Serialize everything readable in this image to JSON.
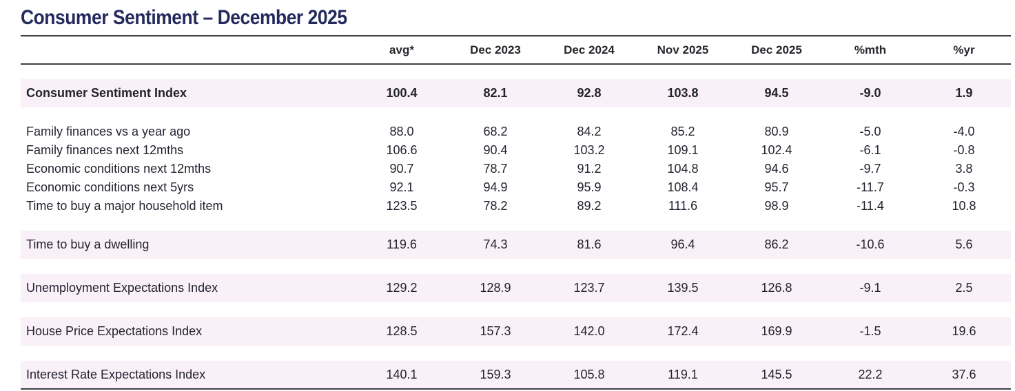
{
  "title": "Consumer Sentiment – December 2025",
  "table": {
    "columns": [
      "",
      "avg*",
      "Dec 2023",
      "Dec 2024",
      "Nov 2025",
      "Dec 2025",
      "%mth",
      "%yr"
    ],
    "groups": [
      {
        "rows": [
          {
            "label": "Consumer Sentiment Index",
            "values": [
              "100.4",
              "82.1",
              "92.8",
              "103.8",
              "94.5",
              "-9.0",
              "1.9"
            ],
            "highlight": true,
            "emphasis": true
          }
        ]
      },
      {
        "rows": [
          {
            "label": "Family finances vs a year ago",
            "values": [
              "88.0",
              "68.2",
              "84.2",
              "85.2",
              "80.9",
              "-5.0",
              "-4.0"
            ],
            "highlight": false,
            "emphasis": false
          },
          {
            "label": "Family finances next 12mths",
            "values": [
              "106.6",
              "90.4",
              "103.2",
              "109.1",
              "102.4",
              "-6.1",
              "-0.8"
            ],
            "highlight": false,
            "emphasis": false
          },
          {
            "label": "Economic conditions next 12mths",
            "values": [
              "90.7",
              "78.7",
              "91.2",
              "104.8",
              "94.6",
              "-9.7",
              "3.8"
            ],
            "highlight": false,
            "emphasis": false
          },
          {
            "label": "Economic conditions next 5yrs",
            "values": [
              "92.1",
              "94.9",
              "95.9",
              "108.4",
              "95.7",
              "-11.7",
              "-0.3"
            ],
            "highlight": false,
            "emphasis": false
          },
          {
            "label": "Time to buy a major household item",
            "values": [
              "123.5",
              "78.2",
              "89.2",
              "111.6",
              "98.9",
              "-11.4",
              "10.8"
            ],
            "highlight": false,
            "emphasis": false
          }
        ]
      },
      {
        "rows": [
          {
            "label": "Time to buy a dwelling",
            "values": [
              "119.6",
              "74.3",
              "81.6",
              "96.4",
              "86.2",
              "-10.6",
              "5.6"
            ],
            "highlight": true,
            "emphasis": false
          }
        ]
      },
      {
        "rows": [
          {
            "label": "Unemployment Expectations Index",
            "values": [
              "129.2",
              "128.9",
              "123.7",
              "139.5",
              "126.8",
              "-9.1",
              "2.5"
            ],
            "highlight": true,
            "emphasis": false
          }
        ]
      },
      {
        "rows": [
          {
            "label": "House Price Expectations Index",
            "values": [
              "128.5",
              "157.3",
              "142.0",
              "172.4",
              "169.9",
              "-1.5",
              "19.6"
            ],
            "highlight": true,
            "emphasis": false
          }
        ]
      },
      {
        "rows": [
          {
            "label": "Interest Rate Expectations Index",
            "values": [
              "140.1",
              "159.3",
              "105.8",
              "119.1",
              "145.5",
              "22.2",
              "37.6"
            ],
            "highlight": true,
            "emphasis": false
          }
        ]
      }
    ]
  },
  "colors": {
    "title": "#242a5e",
    "rule": "#3f3f47",
    "highlight_row_bg": "#faf0f8",
    "text": "#232330"
  }
}
